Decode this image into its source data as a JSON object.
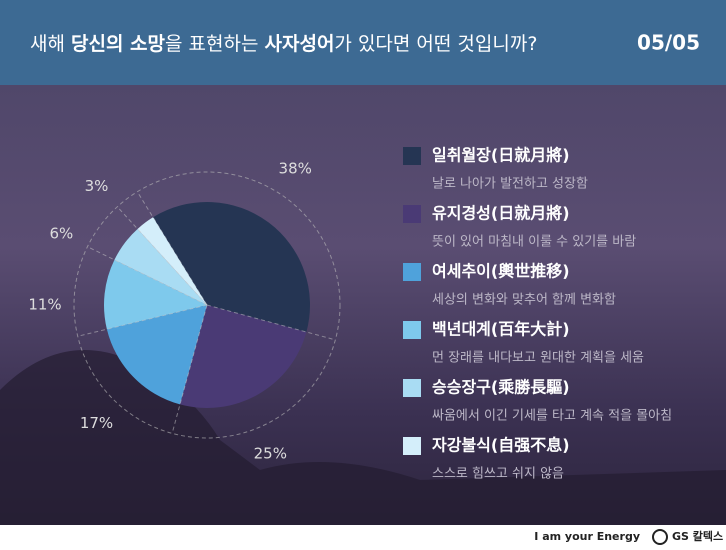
{
  "header": {
    "title_parts": [
      "새해 ",
      "당신의 소망",
      "을 표현하는 ",
      "사자성어",
      "가 있다면 어떤 것입니까?"
    ],
    "page": "05/05"
  },
  "chart_data": {
    "type": "pie",
    "categories": [
      "일취월장(日就月將)",
      "유지경성(日就月將)",
      "여세추이(輿世推移)",
      "백년대계(百年大計)",
      "승승장구(乘勝長驅)",
      "자강불식(自强不息)"
    ],
    "descriptions": [
      "날로 나아가 발전하고 성장함",
      "뜻이 있어 마침내 이룰 수 있기를 바람",
      "세상의 변화와 맞추어 함께 변화함",
      "먼 장래를 내다보고 원대한 계획을 세움",
      "싸움에서 이긴 기세를 타고 계속 적을 몰아침",
      "스스로 힘쓰고 쉬지 않음"
    ],
    "values": [
      38,
      25,
      17,
      11,
      6,
      3
    ],
    "value_labels": [
      "38%",
      "25%",
      "17%",
      "11%",
      "6%",
      "3%"
    ],
    "colors": [
      "#253553",
      "#4a3a75",
      "#4fa2db",
      "#7ec9ec",
      "#a9dcf3",
      "#d4eefa"
    ]
  },
  "footer": {
    "slogan": "I am your Energy",
    "brand": "GS 칼텍스"
  }
}
